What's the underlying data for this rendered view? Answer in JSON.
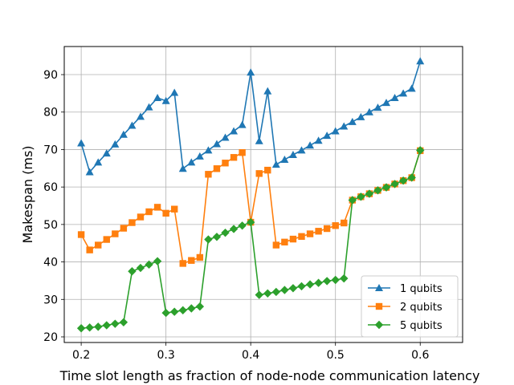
{
  "chart_data": {
    "type": "line",
    "title": "",
    "xlabel": "Time slot length as fraction of node-node communication latency",
    "ylabel": "Makespan (ms)",
    "xlim": [
      0.18,
      0.65
    ],
    "ylim": [
      18.5,
      97.5
    ],
    "xticks": [
      0.2,
      0.3,
      0.4,
      0.5,
      0.6
    ],
    "xtick_labels": [
      "0.2",
      "0.3",
      "0.4",
      "0.5",
      "0.6"
    ],
    "yticks": [
      20,
      30,
      40,
      50,
      60,
      70,
      80,
      90
    ],
    "ytick_labels": [
      "20",
      "30",
      "40",
      "50",
      "60",
      "70",
      "80",
      "90"
    ],
    "grid": true,
    "legend_position": "lower-right",
    "x": [
      0.2,
      0.21,
      0.22,
      0.23,
      0.24,
      0.25,
      0.26,
      0.27,
      0.28,
      0.29,
      0.3,
      0.31,
      0.32,
      0.33,
      0.34,
      0.35,
      0.36,
      0.37,
      0.38,
      0.39,
      0.4,
      0.41,
      0.42,
      0.43,
      0.44,
      0.45,
      0.46,
      0.47,
      0.48,
      0.49,
      0.5,
      0.51,
      0.52,
      0.53,
      0.54,
      0.55,
      0.56,
      0.57,
      0.58,
      0.59,
      0.6
    ],
    "series": [
      {
        "name": "1 qubits",
        "color": "#1f77b4",
        "marker": "triangle",
        "values": [
          71.7,
          64.0,
          66.6,
          69.0,
          71.4,
          74.0,
          76.4,
          78.8,
          81.3,
          83.8,
          83.0,
          85.2,
          64.9,
          66.6,
          68.2,
          69.8,
          71.5,
          73.2,
          74.9,
          76.6,
          90.6,
          72.3,
          85.6,
          66.0,
          67.3,
          68.6,
          69.8,
          71.1,
          72.4,
          73.7,
          74.9,
          76.2,
          77.4,
          78.7,
          80.0,
          81.2,
          82.5,
          83.8,
          85.0,
          86.3,
          93.6
        ]
      },
      {
        "name": "2 qubits",
        "color": "#ff7f0e",
        "marker": "square",
        "values": [
          47.3,
          43.2,
          44.5,
          46.0,
          47.5,
          49.0,
          50.5,
          52.0,
          53.4,
          54.6,
          53.0,
          54.1,
          39.6,
          40.4,
          41.2,
          63.4,
          64.9,
          66.4,
          67.9,
          69.2,
          50.6,
          63.6,
          64.5,
          44.5,
          45.3,
          46.1,
          46.8,
          47.5,
          48.2,
          48.9,
          49.7,
          50.4,
          56.5,
          57.4,
          58.2,
          59.1,
          59.9,
          60.8,
          61.7,
          62.5,
          69.7
        ]
      },
      {
        "name": "5 qubits",
        "color": "#2ca02c",
        "marker": "diamond",
        "values": [
          22.3,
          22.5,
          22.7,
          23.1,
          23.5,
          23.9,
          37.5,
          38.4,
          39.3,
          40.2,
          26.4,
          26.7,
          27.1,
          27.6,
          28.1,
          46.0,
          46.7,
          47.8,
          48.8,
          49.7,
          50.6,
          31.2,
          31.6,
          32.0,
          32.5,
          33.0,
          33.5,
          34.0,
          34.4,
          34.9,
          35.2,
          35.6,
          56.5,
          57.4,
          58.2,
          59.1,
          59.9,
          60.8,
          61.7,
          62.5,
          69.8
        ]
      }
    ]
  }
}
